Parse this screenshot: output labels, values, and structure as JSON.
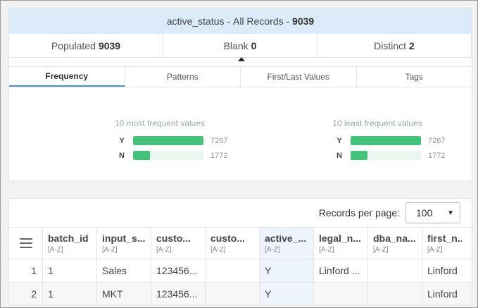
{
  "header": {
    "field": "active_status",
    "sep": " - ",
    "scope": "All Records",
    "dash": " - ",
    "total": "9039"
  },
  "stats": [
    {
      "label": "Populated",
      "value": "9039"
    },
    {
      "label": "Blank",
      "value": "0"
    },
    {
      "label": "Distinct",
      "value": "2"
    }
  ],
  "tabs": [
    {
      "label": "Frequency",
      "active": true
    },
    {
      "label": "Patterns",
      "active": false
    },
    {
      "label": "First/Last Values",
      "active": false
    },
    {
      "label": "Tags",
      "active": false
    }
  ],
  "frequency": {
    "most": {
      "title": "10 most frequent values",
      "rows": [
        {
          "value": "Y",
          "count": "7267",
          "fraction": 1.0
        },
        {
          "value": "N",
          "count": "1772",
          "fraction": 0.244
        }
      ]
    },
    "least": {
      "title": "10 least frequent values",
      "rows": [
        {
          "value": "Y",
          "count": "7267",
          "fraction": 1.0
        },
        {
          "value": "N",
          "count": "1772",
          "fraction": 0.244
        }
      ]
    },
    "bar_color": "#46c37b",
    "track_color": "#e9f7ee"
  },
  "table": {
    "records_per_page_label": "Records per page:",
    "records_per_page": "100",
    "menu_icon": "hamburger-icon",
    "columns": [
      {
        "name": "batch_id",
        "sort": "[A-Z]"
      },
      {
        "name": "input_s...",
        "sort": "[A-Z]"
      },
      {
        "name": "custo...",
        "sort": "[A-Z]"
      },
      {
        "name": "custo...",
        "sort": "[A-Z]"
      },
      {
        "name": "active_...",
        "sort": "[A-Z]"
      },
      {
        "name": "legal_n...",
        "sort": "[A-Z]"
      },
      {
        "name": "dba_na...",
        "sort": "[A-Z]"
      },
      {
        "name": "first_n...",
        "sort": "[A-Z]"
      }
    ],
    "rows": [
      {
        "index": "1",
        "cells": [
          "1",
          "Sales",
          "123456...",
          "",
          "Y",
          "Linford ...",
          "",
          "Linford"
        ]
      },
      {
        "index": "2",
        "cells": [
          "1",
          "MKT",
          "123456...",
          "",
          "Y",
          "",
          "",
          "Linford"
        ]
      }
    ]
  }
}
